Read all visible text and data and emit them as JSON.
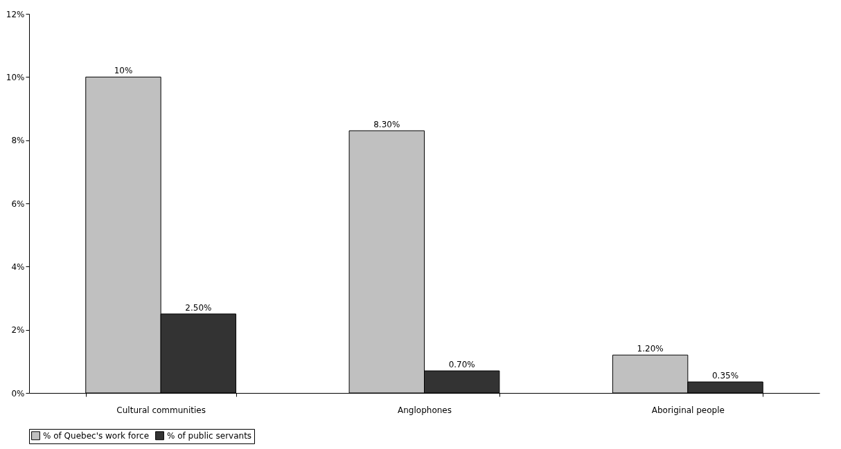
{
  "chart_data": {
    "type": "bar",
    "categories": [
      "Cultural communities",
      "Anglophones",
      "Aboriginal people"
    ],
    "series": [
      {
        "name": "% of Quebec's work force",
        "color": "#c0c0c0",
        "values": [
          10,
          8.3,
          1.2
        ],
        "value_labels": [
          "10%",
          "8.30%",
          "1.20%"
        ]
      },
      {
        "name": "% of public servants",
        "color": "#333333",
        "values": [
          2.5,
          0.7,
          0.35
        ],
        "value_labels": [
          "2.50%",
          "0.70%",
          "0.35%"
        ]
      }
    ],
    "ylim": [
      0,
      12
    ],
    "yticks": [
      {
        "value": 0,
        "label": "0%"
      },
      {
        "value": 2,
        "label": "2%"
      },
      {
        "value": 4,
        "label": "4%"
      },
      {
        "value": 6,
        "label": "6%"
      },
      {
        "value": 8,
        "label": "8%"
      },
      {
        "value": 10,
        "label": "10%"
      },
      {
        "value": 12,
        "label": "12%"
      }
    ],
    "grid": false,
    "legend": "bottom"
  }
}
